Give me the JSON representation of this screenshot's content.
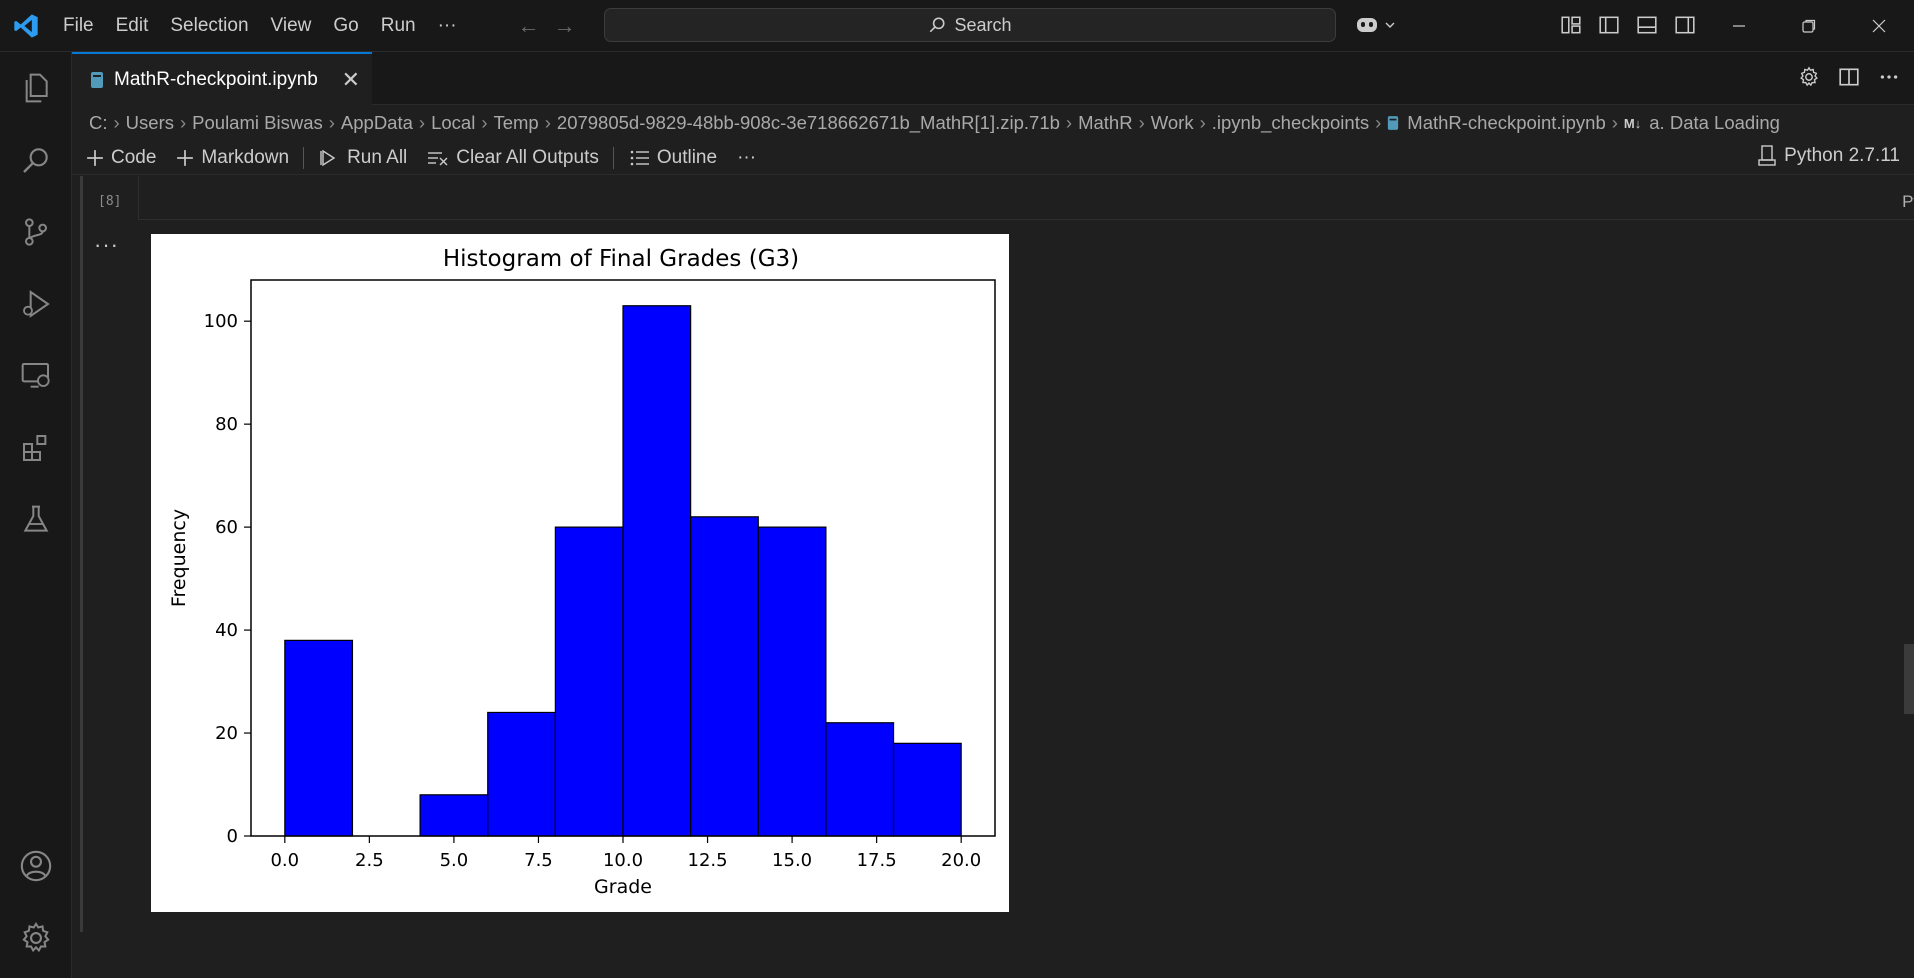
{
  "menu": [
    "File",
    "Edit",
    "Selection",
    "View",
    "Go",
    "Run",
    "···"
  ],
  "search": {
    "label": "Search"
  },
  "tab": {
    "filename": "MathR-checkpoint.ipynb"
  },
  "breadcrumb": [
    "C:",
    "Users",
    "Poulami Biswas",
    "AppData",
    "Local",
    "Temp",
    "2079805d-9829-48bb-908c-3e718662671b_MathR[1].zip.71b",
    "MathR",
    "Work",
    ".ipynb_checkpoints",
    "MathR-checkpoint.ipynb",
    "a. Data Loading"
  ],
  "toolbar": {
    "code": "Code",
    "markdown": "Markdown",
    "run_all": "Run All",
    "clear_outputs": "Clear All Outputs",
    "outline": "Outline",
    "more": "···",
    "kernel": "Python 2.7.11"
  },
  "cell": {
    "exec_count": "[8]",
    "language": "Python",
    "output_dots": "···"
  },
  "chart_data": {
    "type": "bar",
    "title": "Histogram of Final Grades (G3)",
    "xlabel": "Grade",
    "ylabel": "Frequency",
    "bins": [
      {
        "x0": 0,
        "x1": 2,
        "value": 38
      },
      {
        "x0": 2,
        "x1": 4,
        "value": 0
      },
      {
        "x0": 4,
        "x1": 6,
        "value": 8
      },
      {
        "x0": 6,
        "x1": 8,
        "value": 24
      },
      {
        "x0": 8,
        "x1": 10,
        "value": 60
      },
      {
        "x0": 10,
        "x1": 12,
        "value": 103
      },
      {
        "x0": 12,
        "x1": 14,
        "value": 62
      },
      {
        "x0": 14,
        "x1": 16,
        "value": 60
      },
      {
        "x0": 16,
        "x1": 18,
        "value": 22
      },
      {
        "x0": 18,
        "x1": 20,
        "value": 18
      }
    ],
    "xlim": [
      -1,
      21
    ],
    "ylim": [
      0,
      108
    ],
    "xticks": [
      "0.0",
      "2.5",
      "5.0",
      "7.5",
      "10.0",
      "12.5",
      "15.0",
      "17.5",
      "20.0"
    ],
    "yticks": [
      "0",
      "20",
      "40",
      "60",
      "80",
      "100"
    ],
    "bar_color": "#0000ff",
    "edge_color": "#000000",
    "grid": false
  }
}
